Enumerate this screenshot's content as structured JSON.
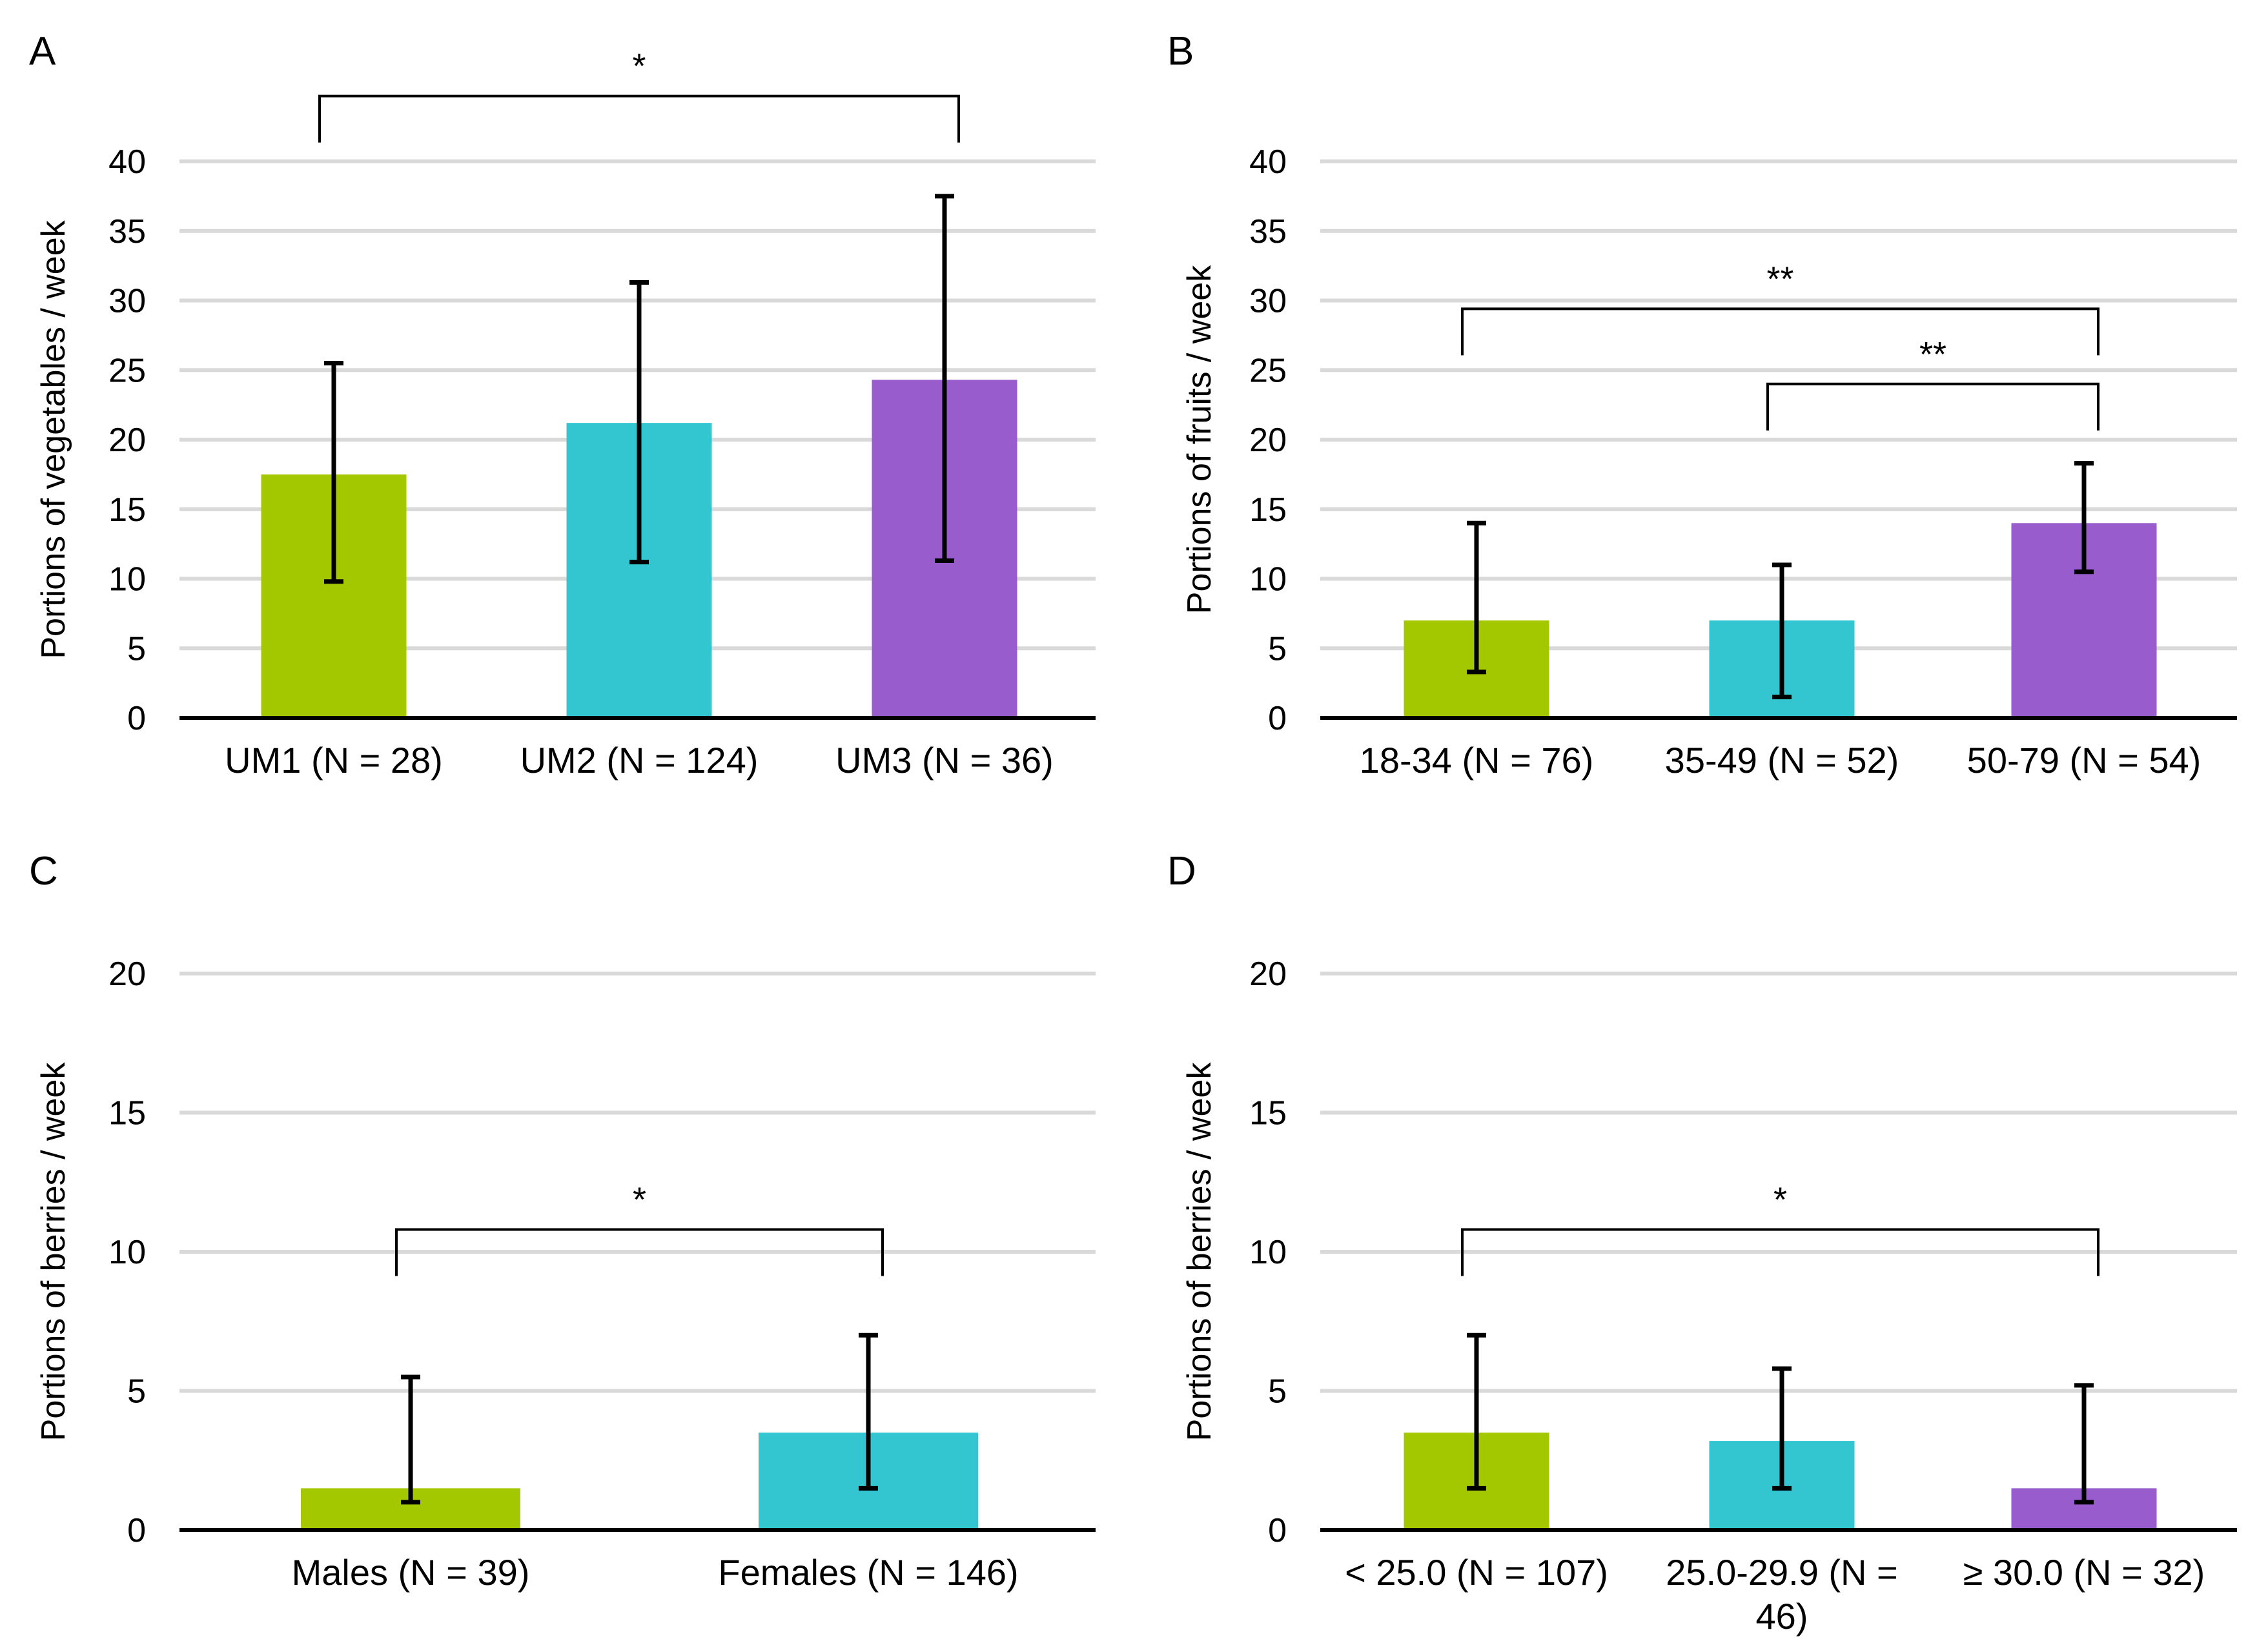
{
  "colors": [
    "#a4c800",
    "#33c6d1",
    "#985ccd"
  ],
  "chart_data": [
    {
      "panel": "A",
      "type": "bar",
      "ylabel": "Portions of vegetables / week",
      "ylim": [
        0,
        40
      ],
      "yticks": [
        0,
        5,
        10,
        15,
        20,
        25,
        30,
        35,
        40
      ],
      "categories": [
        "UM1 (N = 28)",
        "UM2 (N = 124)",
        "UM3 (N = 36)"
      ],
      "values": [
        17.5,
        21.2,
        24.3
      ],
      "error_low": [
        9.8,
        11.2,
        11.3
      ],
      "error_high": [
        25.5,
        31.3,
        37.5
      ],
      "significance": [
        {
          "from": 0,
          "to": 2,
          "label": "*",
          "level": 44.7
        }
      ]
    },
    {
      "panel": "B",
      "type": "bar",
      "ylabel": "Portions of fruits / week",
      "ylim": [
        0,
        40
      ],
      "yticks": [
        0,
        5,
        10,
        15,
        20,
        25,
        30,
        35,
        40
      ],
      "categories": [
        "18-34 (N = 76)",
        "35-49 (N = 52)",
        "50-79 (N = 54)"
      ],
      "values": [
        7.0,
        7.0,
        14.0
      ],
      "error_low": [
        3.3,
        1.5,
        10.5
      ],
      "error_high": [
        14.0,
        11.0,
        18.3
      ],
      "significance": [
        {
          "from": 0,
          "to": 2,
          "label": "**",
          "level": 29.4
        },
        {
          "from": 1,
          "to": 2,
          "label": "**",
          "level": 24.0
        }
      ]
    },
    {
      "panel": "C",
      "type": "bar",
      "ylabel": "Portions of berries / week",
      "ylim": [
        0,
        20
      ],
      "yticks": [
        0,
        5,
        10,
        15,
        20
      ],
      "categories": [
        "Males (N  = 39)",
        "Females (N = 146)"
      ],
      "values": [
        1.5,
        3.5
      ],
      "error_low": [
        1.0,
        1.5
      ],
      "error_high": [
        5.5,
        7.0
      ],
      "significance": [
        {
          "from": 0,
          "to": 1,
          "label": "*",
          "level": 10.8
        }
      ]
    },
    {
      "panel": "D",
      "type": "bar",
      "ylabel": "Portions of berries / week",
      "ylim": [
        0,
        20
      ],
      "yticks": [
        0,
        5,
        10,
        15,
        20
      ],
      "categories": [
        "< 25.0 (N = 107)",
        "25.0-29.9 (N =\n46)",
        "≥ 30.0 (N = 32)"
      ],
      "values": [
        3.5,
        3.2,
        1.5
      ],
      "error_low": [
        1.5,
        1.5,
        1.0
      ],
      "error_high": [
        7.0,
        5.8,
        5.2
      ],
      "significance": [
        {
          "from": 0,
          "to": 2,
          "label": "*",
          "level": 10.8
        }
      ]
    }
  ]
}
